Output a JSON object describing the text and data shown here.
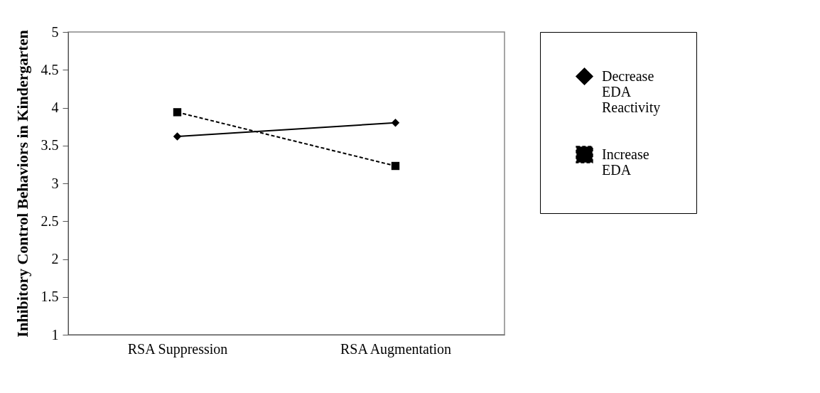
{
  "chart_data": {
    "type": "line",
    "ylabel": "Inhibitory Control Behaviors in Kindergarten",
    "categories": [
      "RSA Suppression",
      "RSA Augmentation"
    ],
    "series": [
      {
        "name": "Decrease EDA Reactivity",
        "color": "#000000",
        "values": [
          3.62,
          3.8
        ],
        "marker": "diamond",
        "line_style": "solid"
      },
      {
        "name": "Increase EDA",
        "color": "#000000",
        "values": [
          3.94,
          3.23
        ],
        "marker": "square",
        "line_style": "dashed"
      }
    ],
    "ylim": [
      1,
      5
    ],
    "yticks": [
      1,
      1.5,
      2,
      2.5,
      3,
      3.5,
      4,
      4.5,
      5
    ],
    "grid": false,
    "legend": "right"
  }
}
